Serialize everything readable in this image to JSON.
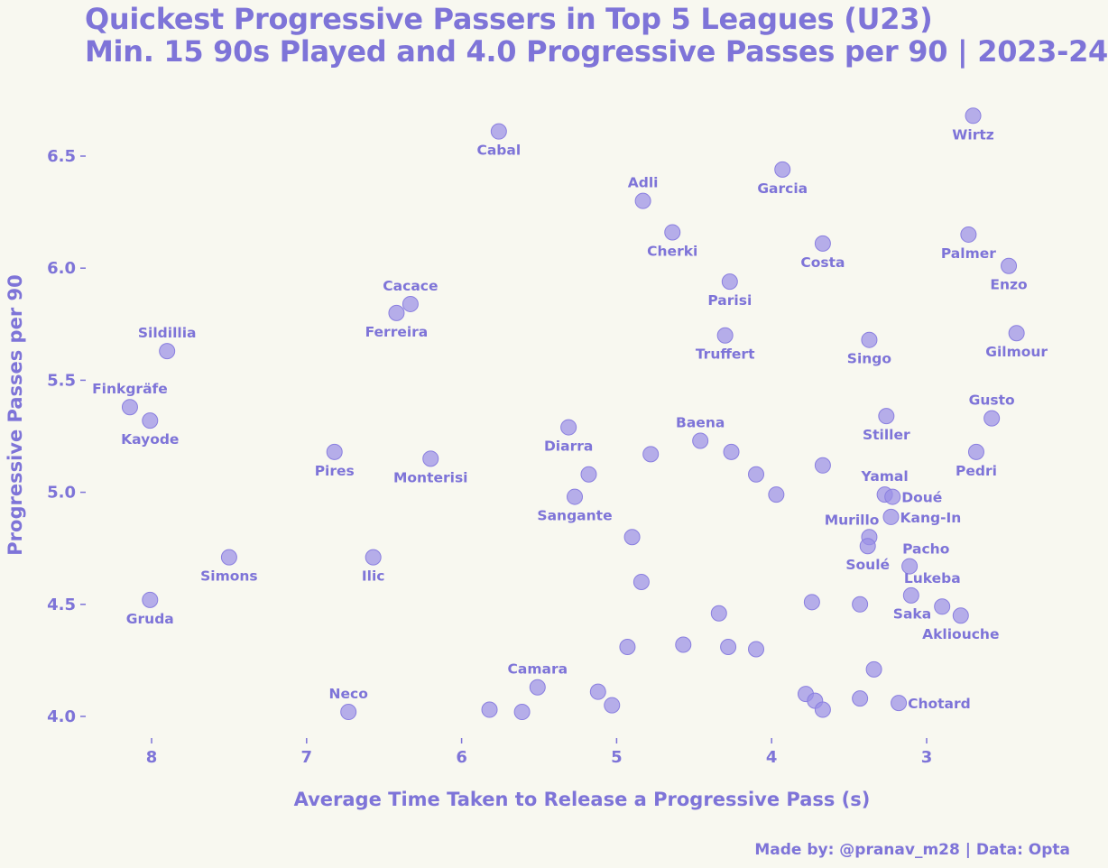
{
  "chart_data": {
    "type": "scatter",
    "title": "Quickest Progressive Passers in Top 5 Leagues (U23)",
    "subtitle": "Min. 15 90s Played and 4.0 Progressive Passes per 90 | 2023-24",
    "xlabel": "Average Time Taken to Release a Progressive Pass (s)",
    "ylabel": "Progressive Passes per 90",
    "x_inverted": true,
    "xlim": [
      8.43,
      2.43
    ],
    "ylim": [
      3.86,
      6.75
    ],
    "xticks": [
      "8",
      "7",
      "6",
      "5",
      "4",
      "3"
    ],
    "xtick_values": [
      8,
      7,
      6,
      5,
      4,
      3
    ],
    "yticks": [
      "4.0",
      "4.5",
      "5.0",
      "5.5",
      "6.0",
      "6.5"
    ],
    "ytick_values": [
      4.0,
      4.5,
      5.0,
      5.5,
      6.0,
      6.5
    ],
    "grid": false,
    "credit": "Made by: @pranav_m28 | Data: Opta",
    "points": [
      {
        "name": "Wirtz",
        "x": 2.7,
        "y": 6.68,
        "label_pos": "below"
      },
      {
        "name": "Cabal",
        "x": 5.76,
        "y": 6.61,
        "label_pos": "below"
      },
      {
        "name": "Garcia",
        "x": 3.93,
        "y": 6.44,
        "label_pos": "below"
      },
      {
        "name": "Adli",
        "x": 4.83,
        "y": 6.3,
        "label_pos": "above"
      },
      {
        "name": "Cherki",
        "x": 4.64,
        "y": 6.16,
        "label_pos": "below"
      },
      {
        "name": "Palmer",
        "x": 2.73,
        "y": 6.15,
        "label_pos": "below"
      },
      {
        "name": "Costa",
        "x": 3.67,
        "y": 6.11,
        "label_pos": "below"
      },
      {
        "name": "Enzo",
        "x": 2.47,
        "y": 6.01,
        "label_pos": "below"
      },
      {
        "name": "Parisi",
        "x": 4.27,
        "y": 5.94,
        "label_pos": "below"
      },
      {
        "name": "Cacace",
        "x": 6.33,
        "y": 5.84,
        "label_pos": "above"
      },
      {
        "name": "Ferreira",
        "x": 6.42,
        "y": 5.8,
        "label_pos": "below"
      },
      {
        "name": "Truffert",
        "x": 4.3,
        "y": 5.7,
        "label_pos": "below"
      },
      {
        "name": "Gilmour",
        "x": 2.42,
        "y": 5.71,
        "label_pos": "below"
      },
      {
        "name": "Singo",
        "x": 3.37,
        "y": 5.68,
        "label_pos": "below"
      },
      {
        "name": "Sildillia",
        "x": 7.9,
        "y": 5.63,
        "label_pos": "above"
      },
      {
        "name": "Finkgräfe",
        "x": 8.14,
        "y": 5.38,
        "label_pos": "above"
      },
      {
        "name": "Kayode",
        "x": 8.01,
        "y": 5.32,
        "label_pos": "below"
      },
      {
        "name": "Stiller",
        "x": 3.26,
        "y": 5.34,
        "label_pos": "below"
      },
      {
        "name": "Gusto",
        "x": 2.58,
        "y": 5.33,
        "label_pos": "above"
      },
      {
        "name": "Diarra",
        "x": 5.31,
        "y": 5.29,
        "label_pos": "below"
      },
      {
        "name": "Baena",
        "x": 4.46,
        "y": 5.23,
        "label_pos": "above"
      },
      {
        "name": "Pedri",
        "x": 2.68,
        "y": 5.18,
        "label_pos": "below"
      },
      {
        "name": "Pires",
        "x": 6.82,
        "y": 5.18,
        "label_pos": "below"
      },
      {
        "name": "Monterisi",
        "x": 6.2,
        "y": 5.15,
        "label_pos": "below"
      },
      {
        "name": "",
        "x": 4.78,
        "y": 5.17,
        "label_pos": "none"
      },
      {
        "name": "",
        "x": 4.26,
        "y": 5.18,
        "label_pos": "none"
      },
      {
        "name": "",
        "x": 3.67,
        "y": 5.12,
        "label_pos": "none"
      },
      {
        "name": "",
        "x": 5.18,
        "y": 5.08,
        "label_pos": "none"
      },
      {
        "name": "",
        "x": 4.1,
        "y": 5.08,
        "label_pos": "none"
      },
      {
        "name": "Sangante",
        "x": 5.27,
        "y": 4.98,
        "label_pos": "below"
      },
      {
        "name": "",
        "x": 3.97,
        "y": 4.99,
        "label_pos": "none"
      },
      {
        "name": "Yamal",
        "x": 3.27,
        "y": 4.99,
        "label_pos": "above"
      },
      {
        "name": "Doué",
        "x": 3.22,
        "y": 4.98,
        "label_pos": "right"
      },
      {
        "name": "Kang-In",
        "x": 3.23,
        "y": 4.89,
        "label_pos": "right"
      },
      {
        "name": "Murillo",
        "x": 3.37,
        "y": 4.8,
        "label_pos": "above-left"
      },
      {
        "name": "",
        "x": 4.9,
        "y": 4.8,
        "label_pos": "none"
      },
      {
        "name": "Soulé",
        "x": 3.38,
        "y": 4.76,
        "label_pos": "below"
      },
      {
        "name": "Simons",
        "x": 7.5,
        "y": 4.71,
        "label_pos": "below"
      },
      {
        "name": "Ilic",
        "x": 6.57,
        "y": 4.71,
        "label_pos": "below"
      },
      {
        "name": "Pacho",
        "x": 3.11,
        "y": 4.67,
        "label_pos": "above-right"
      },
      {
        "name": "",
        "x": 4.84,
        "y": 4.6,
        "label_pos": "none"
      },
      {
        "name": "Gruda",
        "x": 8.01,
        "y": 4.52,
        "label_pos": "below"
      },
      {
        "name": "",
        "x": 3.74,
        "y": 4.51,
        "label_pos": "none"
      },
      {
        "name": "",
        "x": 3.43,
        "y": 4.5,
        "label_pos": "none"
      },
      {
        "name": "Lukeba",
        "x": 3.1,
        "y": 4.54,
        "label_pos": "above-right"
      },
      {
        "name": "Saka",
        "x": 2.9,
        "y": 4.49,
        "label_pos": "below-left"
      },
      {
        "name": "Akliouche",
        "x": 2.78,
        "y": 4.45,
        "label_pos": "below"
      },
      {
        "name": "",
        "x": 4.34,
        "y": 4.46,
        "label_pos": "none"
      },
      {
        "name": "",
        "x": 4.93,
        "y": 4.31,
        "label_pos": "none"
      },
      {
        "name": "",
        "x": 4.57,
        "y": 4.32,
        "label_pos": "none"
      },
      {
        "name": "",
        "x": 4.28,
        "y": 4.31,
        "label_pos": "none"
      },
      {
        "name": "",
        "x": 4.1,
        "y": 4.3,
        "label_pos": "none"
      },
      {
        "name": "",
        "x": 3.34,
        "y": 4.21,
        "label_pos": "none"
      },
      {
        "name": "Camara",
        "x": 5.51,
        "y": 4.13,
        "label_pos": "above"
      },
      {
        "name": "",
        "x": 5.12,
        "y": 4.11,
        "label_pos": "none"
      },
      {
        "name": "",
        "x": 3.78,
        "y": 4.1,
        "label_pos": "none"
      },
      {
        "name": "",
        "x": 3.43,
        "y": 4.08,
        "label_pos": "none"
      },
      {
        "name": "",
        "x": 3.72,
        "y": 4.07,
        "label_pos": "none"
      },
      {
        "name": "Chotard",
        "x": 3.18,
        "y": 4.06,
        "label_pos": "right"
      },
      {
        "name": "",
        "x": 5.03,
        "y": 4.05,
        "label_pos": "none"
      },
      {
        "name": "Neco",
        "x": 6.73,
        "y": 4.02,
        "label_pos": "above"
      },
      {
        "name": "",
        "x": 5.82,
        "y": 4.03,
        "label_pos": "none"
      },
      {
        "name": "",
        "x": 5.61,
        "y": 4.02,
        "label_pos": "none"
      },
      {
        "name": "",
        "x": 3.67,
        "y": 4.03,
        "label_pos": "none"
      }
    ]
  }
}
